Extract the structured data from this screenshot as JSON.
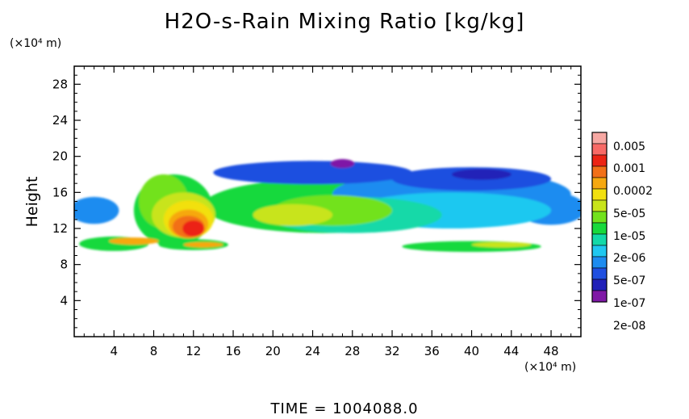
{
  "chart_data": {
    "type": "heatmap",
    "title": "H2O-s-Rain Mixing Ratio [kg/kg]",
    "ylabel": "Height",
    "y_unit": "(×10⁴ m)",
    "x_unit": "(×10⁴ m)",
    "xlim": [
      0,
      51
    ],
    "ylim": [
      0,
      30
    ],
    "x_ticks": [
      "4",
      "8",
      "12",
      "16",
      "20",
      "24",
      "28",
      "32",
      "36",
      "40",
      "44",
      "48"
    ],
    "y_ticks": [
      "4",
      "8",
      "12",
      "16",
      "20",
      "24",
      "28"
    ],
    "grid": false,
    "colorbar": {
      "placement": "right",
      "labels": [
        "0.005",
        "0.001",
        "0.0002",
        "5e-05",
        "1e-05",
        "2e-06",
        "5e-07",
        "1e-07",
        "2e-08"
      ],
      "colors": [
        "#7f18a6",
        "#2020b8",
        "#1f4fe0",
        "#1d8cf0",
        "#1fc8f0",
        "#13d9a8",
        "#18d93c",
        "#72e21c",
        "#c8e41a",
        "#f2e010",
        "#f6a810",
        "#f27018",
        "#ec2414",
        "#f86a66",
        "#f7a8a3"
      ]
    },
    "regions": [
      {
        "level": 6,
        "cx": 4,
        "cy": 10.3,
        "rx": 3.5,
        "ry": 0.8
      },
      {
        "level": 6,
        "cx": 12,
        "cy": 10.2,
        "rx": 3.5,
        "ry": 0.6
      },
      {
        "level": 6,
        "cx": 40,
        "cy": 10.0,
        "rx": 7,
        "ry": 0.6
      },
      {
        "level": 6,
        "cx": 10,
        "cy": 14,
        "rx": 4,
        "ry": 4
      },
      {
        "level": 6,
        "cx": 25,
        "cy": 14.5,
        "rx": 12,
        "ry": 3
      },
      {
        "level": 3,
        "cx": 2,
        "cy": 14,
        "rx": 2.5,
        "ry": 1.5
      },
      {
        "level": 3,
        "cx": 48,
        "cy": 14.2,
        "rx": 3.5,
        "ry": 1.8
      },
      {
        "level": 3,
        "cx": 38,
        "cy": 15.8,
        "rx": 12,
        "ry": 2.6
      },
      {
        "level": 2,
        "cx": 24,
        "cy": 18.2,
        "rx": 10,
        "ry": 1.3
      },
      {
        "level": 2,
        "cx": 40,
        "cy": 17.5,
        "rx": 8,
        "ry": 1.3
      },
      {
        "level": 4,
        "cx": 38,
        "cy": 14,
        "rx": 10,
        "ry": 2
      },
      {
        "level": 5,
        "cx": 28,
        "cy": 13.5,
        "rx": 9,
        "ry": 2
      },
      {
        "level": 7,
        "cx": 26,
        "cy": 14,
        "rx": 6,
        "ry": 1.7
      },
      {
        "level": 8,
        "cx": 22,
        "cy": 13.5,
        "rx": 4,
        "ry": 1.2
      },
      {
        "level": 7,
        "cx": 9,
        "cy": 15,
        "rx": 2.5,
        "ry": 3
      },
      {
        "level": 8,
        "cx": 11,
        "cy": 13.5,
        "rx": 3.2,
        "ry": 2.5
      },
      {
        "level": 9,
        "cx": 11.5,
        "cy": 13,
        "rx": 2.5,
        "ry": 2.1
      },
      {
        "level": 10,
        "cx": 11.5,
        "cy": 12.5,
        "rx": 2,
        "ry": 1.6
      },
      {
        "level": 11,
        "cx": 11.5,
        "cy": 12.2,
        "rx": 1.6,
        "ry": 1.2
      },
      {
        "level": 12,
        "cx": 12,
        "cy": 12,
        "rx": 1.1,
        "ry": 0.9
      },
      {
        "level": 10,
        "cx": 6,
        "cy": 10.6,
        "rx": 2.5,
        "ry": 0.4
      },
      {
        "level": 10,
        "cx": 13,
        "cy": 10.2,
        "rx": 2,
        "ry": 0.3
      },
      {
        "level": 8,
        "cx": 43,
        "cy": 10.2,
        "rx": 3,
        "ry": 0.3
      },
      {
        "level": 0,
        "cx": 27,
        "cy": 19.2,
        "rx": 1.2,
        "ry": 0.5
      },
      {
        "level": 1,
        "cx": 41,
        "cy": 18,
        "rx": 3,
        "ry": 0.6
      }
    ]
  },
  "footer": {
    "time_label": "TIME  =  1004088.0"
  }
}
